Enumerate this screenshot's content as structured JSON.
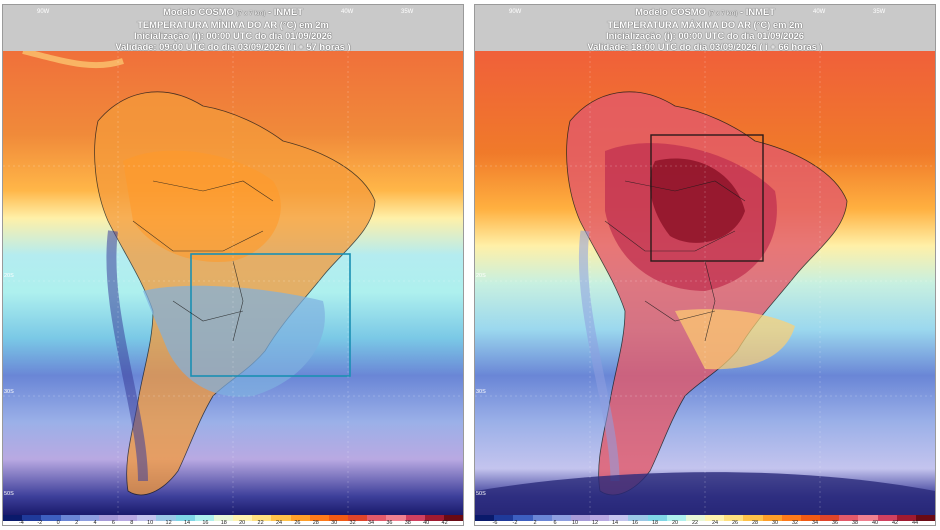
{
  "panels": [
    {
      "id": "min",
      "model_line": "Modelo COSMO",
      "model_res": "(7 x 7 km)",
      "model_org": "- INMET",
      "variable": "TEMPERATURA MÍNIMA DO AR (°C) em 2m",
      "init": "Inicialização (i): 00:00 UTC do dia 01/09/2026",
      "valid": "Validade: 09:00 UTC do dia 03/09/2026 ( i + 57 horas )",
      "lon_labels": [
        "90W",
        "40W",
        "35W"
      ],
      "lat_labels": [
        "20S",
        "30S",
        "50S"
      ],
      "highlight_box_color": "#1a8fb3",
      "colorbar_labels": [
        "-4",
        "-2",
        "0",
        "2",
        "4",
        "6",
        "8",
        "10",
        "12",
        "14",
        "16",
        "18",
        "20",
        "22",
        "24",
        "26",
        "28",
        "30",
        "32",
        "34",
        "36",
        "38",
        "40",
        "42"
      ]
    },
    {
      "id": "max",
      "model_line": "Modelo COSMO",
      "model_res": "(7 x 7 km)",
      "model_org": "- INMET",
      "variable": "TEMPERATURA MÁXIMA DO AR (°C) em 2m",
      "init": "Inicialização (i): 00:00 UTC do dia 01/09/2026",
      "valid": "Validade: 18:00 UTC do dia 03/09/2026 ( i + 66 horas )",
      "lon_labels": [
        "90W",
        "40W",
        "35W"
      ],
      "lat_labels": [
        "20S",
        "30S",
        "50S"
      ],
      "highlight_box_color": "#2a1a1a",
      "colorbar_labels": [
        "-6",
        "-2",
        "2",
        "6",
        "10",
        "12",
        "14",
        "16",
        "18",
        "20",
        "22",
        "24",
        "26",
        "28",
        "30",
        "32",
        "34",
        "36",
        "38",
        "40",
        "42",
        "44"
      ]
    }
  ],
  "colorbar_colors": [
    "#0a1a6b",
    "#1f3a9a",
    "#3d5fc0",
    "#6a86d6",
    "#8e9fe0",
    "#a79bd8",
    "#b9a9e2",
    "#c4c4ee",
    "#9bc8e6",
    "#7fd6e6",
    "#aef0ee",
    "#e8f7d8",
    "#fff3b0",
    "#ffe080",
    "#ffc24a",
    "#ff9f2a",
    "#ff7a1a",
    "#f25a14",
    "#e0442a",
    "#e35a6a",
    "#f08090",
    "#d04060",
    "#a01a30",
    "#6a0a14"
  ]
}
